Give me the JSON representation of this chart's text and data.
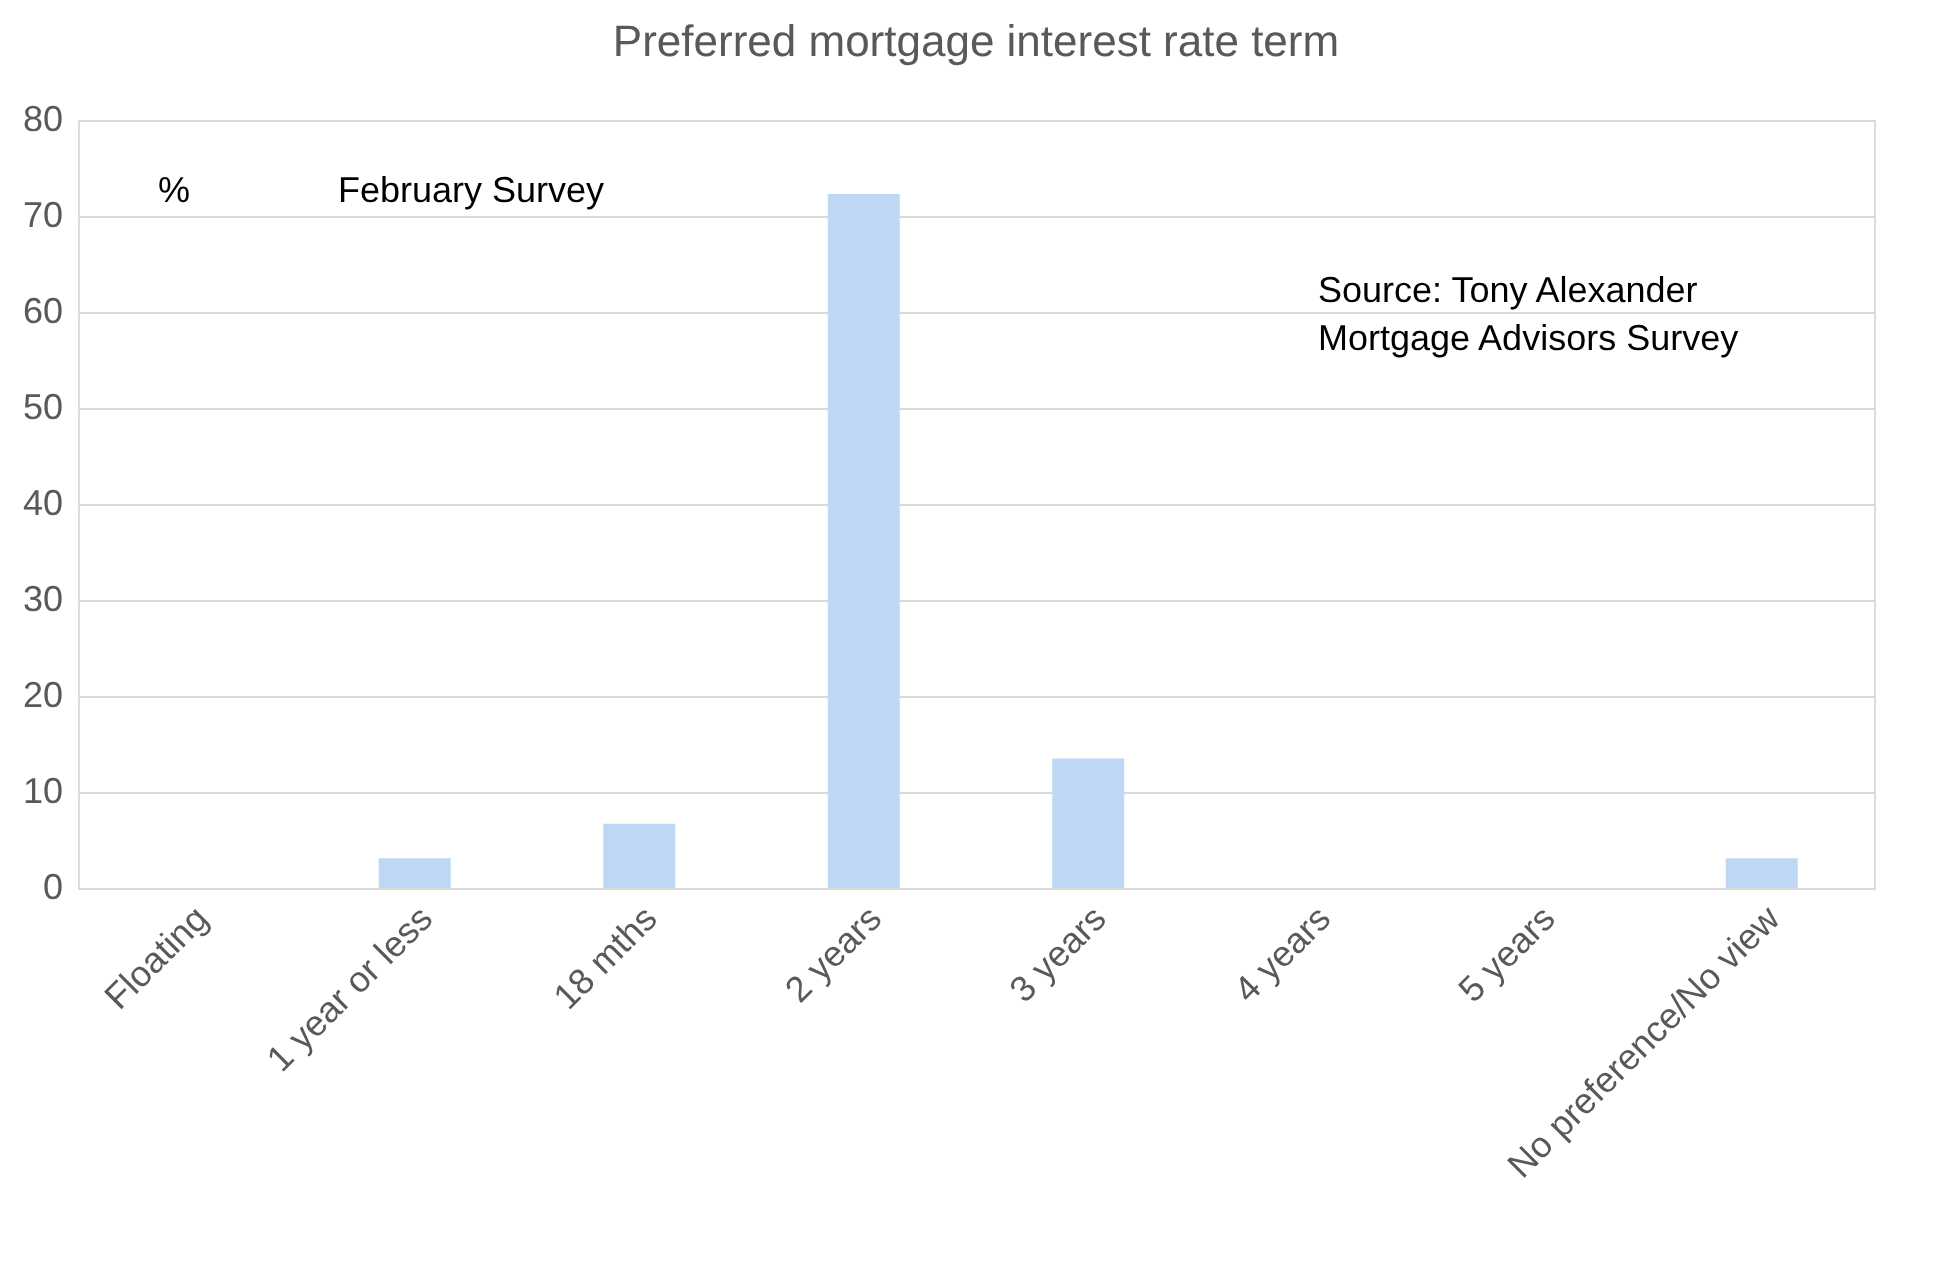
{
  "chart_data": {
    "type": "bar",
    "title": "Preferred mortgage interest rate term",
    "categories": [
      "Floating",
      "1 year or less",
      "18 mths",
      "2 years",
      "3 years",
      "4 years",
      "5 years",
      "No preference/No view"
    ],
    "values": [
      0,
      3.1,
      6.7,
      72.3,
      13.5,
      0,
      0,
      3.1
    ],
    "color": "#bdd7f5",
    "ylim": [
      0,
      80
    ],
    "yticks": [
      0,
      10,
      20,
      30,
      40,
      50,
      60,
      70,
      80
    ],
    "grid": "y",
    "annotations": [
      "%",
      "February Survey",
      "Source: Tony Alexander Mortgage Advisors Survey"
    ]
  }
}
